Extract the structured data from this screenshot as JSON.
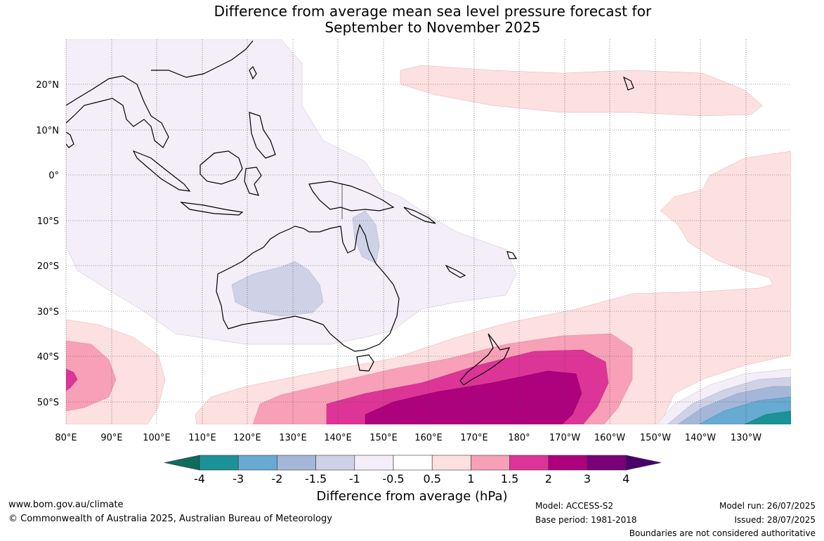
{
  "title_line1": "Difference from average mean sea level pressure forecast for",
  "title_line2": "September to November 2025",
  "lat_labels": [
    "20°N",
    "10°N",
    "0°",
    "10°S",
    "20°S",
    "30°S",
    "40°S",
    "50°S"
  ],
  "lon_labels": [
    "80°E",
    "90°E",
    "100°E",
    "110°E",
    "120°E",
    "130°E",
    "140°E",
    "150°E",
    "160°E",
    "170°E",
    "180°",
    "170°W",
    "160°W",
    "150°W",
    "140°W",
    "130°W"
  ],
  "colorbar": {
    "label": "Difference from average (hPa)",
    "ticks": [
      "-4",
      "-3",
      "-2",
      "-1.5",
      "-1",
      "-0.5",
      "0.5",
      "1",
      "1.5",
      "2",
      "3",
      "4"
    ],
    "colors": [
      "#0f6b5c",
      "#1b9297",
      "#67aad2",
      "#a4b7d8",
      "#cfd2e6",
      "#f3eef7",
      "#ffffff",
      "#fde0e0",
      "#f7a0b7",
      "#dd3597",
      "#ae017e",
      "#7a0177",
      "#49006a"
    ]
  },
  "footer": {
    "website": "www.bom.gov.au/climate",
    "copyright": "© Commonwealth of Australia 2025, Australian Bureau of Meteorology",
    "model": "Model: ACCESS-S2",
    "base_period": "Base period: 1981-2018",
    "model_run": "Model run: 26/07/2025",
    "issued": "Issued: 28/07/2025",
    "disclaimer": "Boundaries are not considered authoritative"
  }
}
